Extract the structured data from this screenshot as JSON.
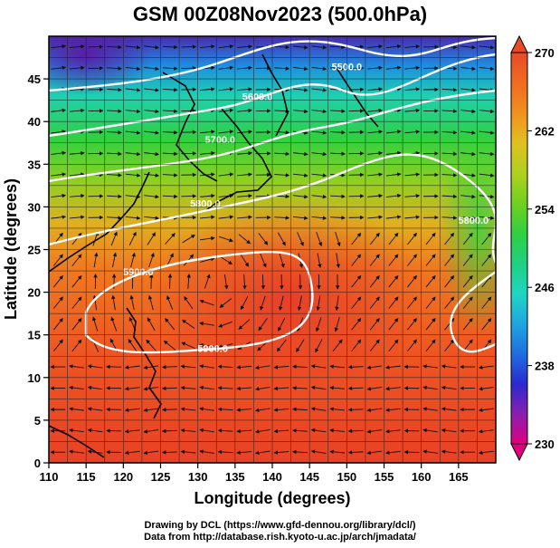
{
  "title": "GSM 00Z08Nov2023 (500.0hPa)",
  "axes": {
    "xlabel": "Longitude (degrees)",
    "ylabel": "Latitude  (degrees)",
    "x_ticks": [
      "110",
      "115",
      "120",
      "125",
      "130",
      "135",
      "140",
      "145",
      "150",
      "155",
      "160",
      "165"
    ],
    "y_ticks": [
      "0",
      "5",
      "10",
      "15",
      "20",
      "25",
      "30",
      "35",
      "40",
      "45"
    ],
    "xlim": [
      110,
      170
    ],
    "ylim": [
      0,
      50
    ]
  },
  "colorbar": {
    "labels": [
      "270",
      "262",
      "254",
      "246",
      "238",
      "230"
    ],
    "range": [
      230,
      270
    ],
    "colors": [
      "#e0007f",
      "#8a1fb0",
      "#2a2ad0",
      "#1f6fe0",
      "#1fa6e0",
      "#1fd6c0",
      "#1fd080",
      "#30d040",
      "#70d020",
      "#b0d020",
      "#e0c020",
      "#f09020",
      "#f06a20",
      "#e84a28"
    ]
  },
  "contours": [
    {
      "label": "5500.0",
      "lon": 150,
      "lat": 46
    },
    {
      "label": "5600.0",
      "lon": 138,
      "lat": 42.5
    },
    {
      "label": "5700.0",
      "lon": 133,
      "lat": 37.5
    },
    {
      "label": "5800.0",
      "lon": 131,
      "lat": 30
    },
    {
      "label": "5800.0",
      "lon": 167,
      "lat": 28
    },
    {
      "label": "5900.0",
      "lon": 122,
      "lat": 22
    },
    {
      "label": "5900.0",
      "lon": 132,
      "lat": 13
    }
  ],
  "credits": [
    "Drawing by DCL (https://www.gfd-dennou.org/library/dcl/)",
    "Data from http://database.rish.kyoto-u.ac.jp/arch/jmadata/"
  ]
}
